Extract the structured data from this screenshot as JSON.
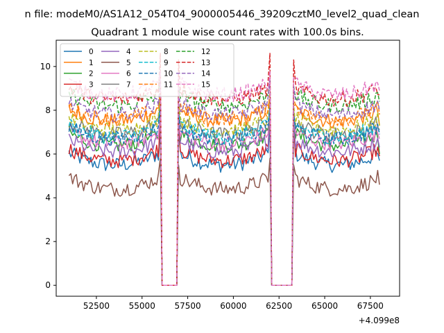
{
  "chart_data": {
    "type": "line",
    "suptitle": "n file: modeM0/AS1A12_054T04_9000005446_39209cztM0_level2_quad_clean",
    "title": "Quadrant 1 module wise count rates with 100.0s bins.",
    "xlabel": "",
    "ylabel": "",
    "x_offset_label": "+4.099e8",
    "xlim": [
      50300,
      69100
    ],
    "ylim": [
      -0.5,
      11.2
    ],
    "x_ticks": [
      52500,
      55000,
      57500,
      60000,
      62500,
      65000,
      67500
    ],
    "x_tick_labels": [
      "52500",
      "55000",
      "57500",
      "60000",
      "62500",
      "65000",
      "67500"
    ],
    "y_ticks": [
      0,
      2,
      4,
      6,
      8,
      10
    ],
    "y_tick_labels": [
      "0",
      "2",
      "4",
      "6",
      "8",
      "10"
    ],
    "legend_position": "upper-left",
    "legend_columns": 4,
    "bin_seconds": 100,
    "x_start": 51000,
    "x_end": 68000,
    "gaps": [
      [
        56000,
        57000
      ],
      [
        62000,
        63300
      ]
    ],
    "series": [
      {
        "name": "0",
        "color": "#1f77b4",
        "dash": "solid",
        "level": 5.7,
        "amp": 0.35,
        "spike": 7.3,
        "edge_drop": 0.0
      },
      {
        "name": "1",
        "color": "#ff7f0e",
        "dash": "solid",
        "level": 7.7,
        "amp": 0.35,
        "spike": 8.5,
        "edge_drop": 0.4
      },
      {
        "name": "2",
        "color": "#2ca02c",
        "dash": "solid",
        "level": 6.6,
        "amp": 0.35,
        "spike": 8.0,
        "edge_drop": 0.6
      },
      {
        "name": "3",
        "color": "#d62728",
        "dash": "solid",
        "level": 5.9,
        "amp": 0.35,
        "spike": 7.8,
        "edge_drop": 0.0
      },
      {
        "name": "4",
        "color": "#9467bd",
        "dash": "solid",
        "level": 6.3,
        "amp": 0.35,
        "spike": 8.2,
        "edge_drop": 0.0
      },
      {
        "name": "5",
        "color": "#8c564b",
        "dash": "solid",
        "level": 4.6,
        "amp": 0.35,
        "spike": 5.8,
        "edge_drop": 0.0
      },
      {
        "name": "6",
        "color": "#e377c2",
        "dash": "solid",
        "level": 6.7,
        "amp": 0.35,
        "spike": 8.0,
        "edge_drop": 0.0
      },
      {
        "name": "7",
        "color": "#7f7f7f",
        "dash": "solid",
        "level": 7.1,
        "amp": 0.35,
        "spike": 8.3,
        "edge_drop": 0.0
      },
      {
        "name": "8",
        "color": "#bcbd22",
        "dash": "dashed",
        "level": 7.3,
        "amp": 0.35,
        "spike": 8.6,
        "edge_drop": 0.0
      },
      {
        "name": "9",
        "color": "#17becf",
        "dash": "dashed",
        "level": 7.0,
        "amp": 0.35,
        "spike": 8.1,
        "edge_drop": 0.0
      },
      {
        "name": "10",
        "color": "#1f77b4",
        "dash": "dashed",
        "level": 6.9,
        "amp": 0.35,
        "spike": 8.1,
        "edge_drop": 0.0
      },
      {
        "name": "11",
        "color": "#ff7f0e",
        "dash": "dashed",
        "level": 7.8,
        "amp": 0.35,
        "spike": 8.8,
        "edge_drop": 0.0
      },
      {
        "name": "12",
        "color": "#2ca02c",
        "dash": "dashed",
        "level": 8.4,
        "amp": 0.35,
        "spike": 9.4,
        "edge_drop": 0.0
      },
      {
        "name": "13",
        "color": "#d62728",
        "dash": "dashed",
        "level": 8.7,
        "amp": 0.35,
        "spike": 10.6,
        "edge_drop": 0.0
      },
      {
        "name": "14",
        "color": "#9467bd",
        "dash": "dashed",
        "level": 8.0,
        "amp": 0.35,
        "spike": 9.4,
        "edge_drop": 0.0
      },
      {
        "name": "15",
        "color": "#e377c2",
        "dash": "dashed",
        "level": 8.9,
        "amp": 0.35,
        "spike": 9.8,
        "edge_drop": 0.0
      }
    ]
  }
}
